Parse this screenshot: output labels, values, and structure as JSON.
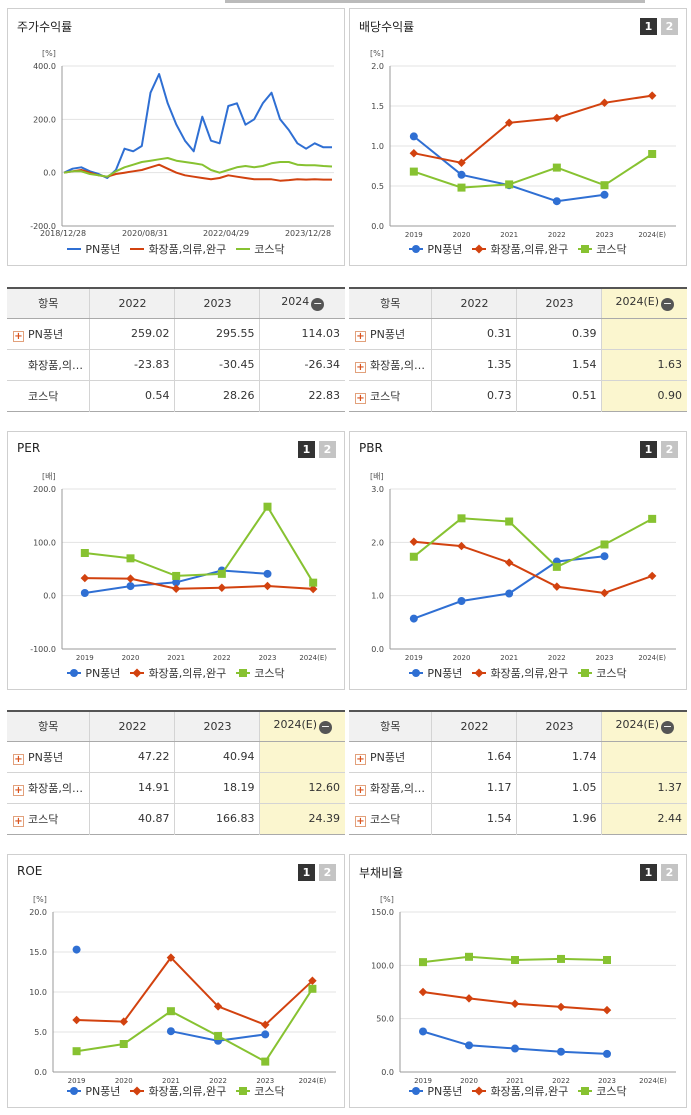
{
  "colors": {
    "pn": "#2f6fd3",
    "cosmetics": "#d2420f",
    "kosdaq": "#87c231"
  },
  "legend": {
    "pn": "PN풍년",
    "cosmetics": "화장품,의류,완구",
    "kosdaq": "코스닥"
  },
  "buttons": {
    "one": "1",
    "two": "2"
  },
  "panels": {
    "stock": {
      "title": "주가수익률",
      "unit": "[%]",
      "yticks": [
        "400.0",
        "200.0",
        "0.0",
        "-200.0"
      ],
      "xticks": [
        "2018/12/28",
        "2020/08/31",
        "2022/04/29",
        "2023/12/28"
      ]
    },
    "dividend": {
      "title": "배당수익률",
      "unit": "[%]",
      "yticks": [
        "2.0",
        "1.5",
        "1.0",
        "0.5",
        "0.0"
      ],
      "xticks": [
        "2019",
        "2020",
        "2021",
        "2022",
        "2023",
        "2024(E)"
      ]
    },
    "per": {
      "title": "PER",
      "unit": "[배]",
      "yticks": [
        "200.0",
        "100.0",
        "0.0",
        "-100.0"
      ],
      "xticks": [
        "2019",
        "2020",
        "2021",
        "2022",
        "2023",
        "2024(E)"
      ]
    },
    "pbr": {
      "title": "PBR",
      "unit": "[배]",
      "yticks": [
        "3.0",
        "2.0",
        "1.0",
        "0.0"
      ],
      "xticks": [
        "2019",
        "2020",
        "2021",
        "2022",
        "2023",
        "2024(E)"
      ]
    },
    "roe": {
      "title": "ROE",
      "unit": "[%]",
      "yticks": [
        "20.0",
        "15.0",
        "10.0",
        "5.0",
        "0.0"
      ],
      "xticks": [
        "2019",
        "2020",
        "2021",
        "2022",
        "2023",
        "2024(E)"
      ]
    },
    "debt": {
      "title": "부채비율",
      "unit": "[%]",
      "yticks": [
        "150.0",
        "100.0",
        "50.0",
        "0.0"
      ],
      "xticks": [
        "2019",
        "2020",
        "2021",
        "2022",
        "2023",
        "2024(E)"
      ]
    }
  },
  "tables": {
    "stock": {
      "headers": [
        "항목",
        "2022",
        "2023",
        "2024"
      ],
      "rows": [
        {
          "name": "PN풍년",
          "plus": true,
          "v": [
            "259.02",
            "295.55",
            "114.03"
          ]
        },
        {
          "name": "화장품,의…",
          "plus": false,
          "v": [
            "-23.83",
            "-30.45",
            "-26.34"
          ]
        },
        {
          "name": "코스닥",
          "plus": false,
          "v": [
            "0.54",
            "28.26",
            "22.83"
          ]
        }
      ]
    },
    "dividend": {
      "headers": [
        "항목",
        "2022",
        "2023",
        "2024(E)"
      ],
      "rows": [
        {
          "name": "PN풍년",
          "plus": true,
          "v": [
            "0.31",
            "0.39",
            ""
          ]
        },
        {
          "name": "화장품,의…",
          "plus": true,
          "v": [
            "1.35",
            "1.54",
            "1.63"
          ]
        },
        {
          "name": "코스닥",
          "plus": true,
          "v": [
            "0.73",
            "0.51",
            "0.90"
          ]
        }
      ]
    },
    "per": {
      "headers": [
        "항목",
        "2022",
        "2023",
        "2024(E)"
      ],
      "rows": [
        {
          "name": "PN풍년",
          "plus": true,
          "v": [
            "47.22",
            "40.94",
            ""
          ]
        },
        {
          "name": "화장품,의…",
          "plus": true,
          "v": [
            "14.91",
            "18.19",
            "12.60"
          ]
        },
        {
          "name": "코스닥",
          "plus": true,
          "v": [
            "40.87",
            "166.83",
            "24.39"
          ]
        }
      ]
    },
    "pbr": {
      "headers": [
        "항목",
        "2022",
        "2023",
        "2024(E)"
      ],
      "rows": [
        {
          "name": "PN풍년",
          "plus": true,
          "v": [
            "1.64",
            "1.74",
            ""
          ]
        },
        {
          "name": "화장품,의…",
          "plus": true,
          "v": [
            "1.17",
            "1.05",
            "1.37"
          ]
        },
        {
          "name": "코스닥",
          "plus": true,
          "v": [
            "1.54",
            "1.96",
            "2.44"
          ]
        }
      ]
    }
  },
  "chart_data": [
    {
      "type": "line",
      "title": "주가수익률",
      "ylabel": "[%]",
      "ylim": [
        -200,
        400
      ],
      "x": [
        "2018/12/28",
        "2019/03",
        "2019/06",
        "2019/09",
        "2019/12",
        "2020/03",
        "2020/06",
        "2020/08/31",
        "2020/10",
        "2020/12",
        "2021/02",
        "2021/03",
        "2021/04",
        "2021/06",
        "2021/08",
        "2021/10",
        "2021/12",
        "2022/02",
        "2022/04/29",
        "2022/06",
        "2022/08",
        "2022/10",
        "2022/12",
        "2023/02",
        "2023/04",
        "2023/06",
        "2023/08",
        "2023/10",
        "2023/12/28",
        "2024/02",
        "2024/04",
        "2024/06"
      ],
      "series": [
        {
          "name": "PN풍년",
          "values": [
            0,
            15,
            20,
            5,
            -5,
            -20,
            10,
            90,
            80,
            100,
            300,
            370,
            260,
            180,
            120,
            80,
            210,
            120,
            110,
            250,
            260,
            180,
            200,
            260,
            300,
            200,
            160,
            110,
            90,
            110,
            95,
            95
          ]
        },
        {
          "name": "화장품,의류,완구",
          "values": [
            0,
            5,
            10,
            0,
            -10,
            -15,
            -5,
            0,
            5,
            10,
            20,
            30,
            15,
            0,
            -10,
            -15,
            -20,
            -25,
            -20,
            -10,
            -15,
            -20,
            -25,
            -25,
            -25,
            -30,
            -28,
            -25,
            -26,
            -25,
            -26,
            -26
          ]
        },
        {
          "name": "코스닥",
          "values": [
            0,
            5,
            5,
            -5,
            -10,
            -15,
            5,
            20,
            30,
            40,
            45,
            50,
            55,
            45,
            40,
            35,
            30,
            10,
            0,
            10,
            20,
            25,
            20,
            25,
            35,
            40,
            40,
            30,
            28,
            28,
            25,
            23
          ]
        }
      ]
    },
    {
      "type": "line",
      "title": "배당수익률",
      "ylabel": "[%]",
      "ylim": [
        0,
        2
      ],
      "x": [
        "2019",
        "2020",
        "2021",
        "2022",
        "2023",
        "2024(E)"
      ],
      "series": [
        {
          "name": "PN풍년",
          "values": [
            1.12,
            0.64,
            0.51,
            0.31,
            0.39,
            null
          ]
        },
        {
          "name": "화장품,의류,완구",
          "values": [
            0.91,
            0.79,
            1.29,
            1.35,
            1.54,
            1.63
          ]
        },
        {
          "name": "코스닥",
          "values": [
            0.68,
            0.48,
            0.52,
            0.73,
            0.51,
            0.9
          ]
        }
      ]
    },
    {
      "type": "line",
      "title": "PER",
      "ylabel": "[배]",
      "ylim": [
        -100,
        200
      ],
      "x": [
        "2019",
        "2020",
        "2021",
        "2022",
        "2023",
        "2024(E)"
      ],
      "series": [
        {
          "name": "PN풍년",
          "values": [
            5,
            18,
            25,
            47.22,
            40.94,
            null
          ]
        },
        {
          "name": "화장품,의류,완구",
          "values": [
            33,
            32,
            13,
            14.91,
            18.19,
            12.6
          ]
        },
        {
          "name": "코스닥",
          "values": [
            80,
            70,
            37,
            40.87,
            166.83,
            24.39
          ]
        }
      ]
    },
    {
      "type": "line",
      "title": "PBR",
      "ylabel": "[배]",
      "ylim": [
        0,
        3
      ],
      "x": [
        "2019",
        "2020",
        "2021",
        "2022",
        "2023",
        "2024(E)"
      ],
      "series": [
        {
          "name": "PN풍년",
          "values": [
            0.57,
            0.9,
            1.04,
            1.64,
            1.74,
            null
          ]
        },
        {
          "name": "화장품,의류,완구",
          "values": [
            2.01,
            1.93,
            1.62,
            1.17,
            1.05,
            1.37
          ]
        },
        {
          "name": "코스닥",
          "values": [
            1.73,
            2.45,
            2.39,
            1.54,
            1.96,
            2.44
          ]
        }
      ]
    },
    {
      "type": "line",
      "title": "ROE",
      "ylabel": "[%]",
      "ylim": [
        0,
        20
      ],
      "x": [
        "2019",
        "2020",
        "2021",
        "2022",
        "2023",
        "2024(E)"
      ],
      "series": [
        {
          "name": "PN풍년",
          "values": [
            15.3,
            null,
            5.1,
            3.9,
            4.7,
            null
          ]
        },
        {
          "name": "화장품,의류,완구",
          "values": [
            6.5,
            6.3,
            14.3,
            8.2,
            5.9,
            11.4
          ]
        },
        {
          "name": "코스닥",
          "values": [
            2.6,
            3.5,
            7.6,
            4.5,
            1.3,
            10.4
          ]
        }
      ]
    },
    {
      "type": "line",
      "title": "부채비율",
      "ylabel": "[%]",
      "ylim": [
        0,
        150
      ],
      "x": [
        "2019",
        "2020",
        "2021",
        "2022",
        "2023",
        "2024(E)"
      ],
      "series": [
        {
          "name": "PN풍년",
          "values": [
            38,
            25,
            22,
            19,
            17,
            null
          ]
        },
        {
          "name": "화장품,의류,완구",
          "values": [
            75,
            69,
            64,
            61,
            58,
            null
          ]
        },
        {
          "name": "코스닥",
          "values": [
            103,
            108,
            105,
            106,
            105,
            null
          ]
        }
      ]
    }
  ]
}
